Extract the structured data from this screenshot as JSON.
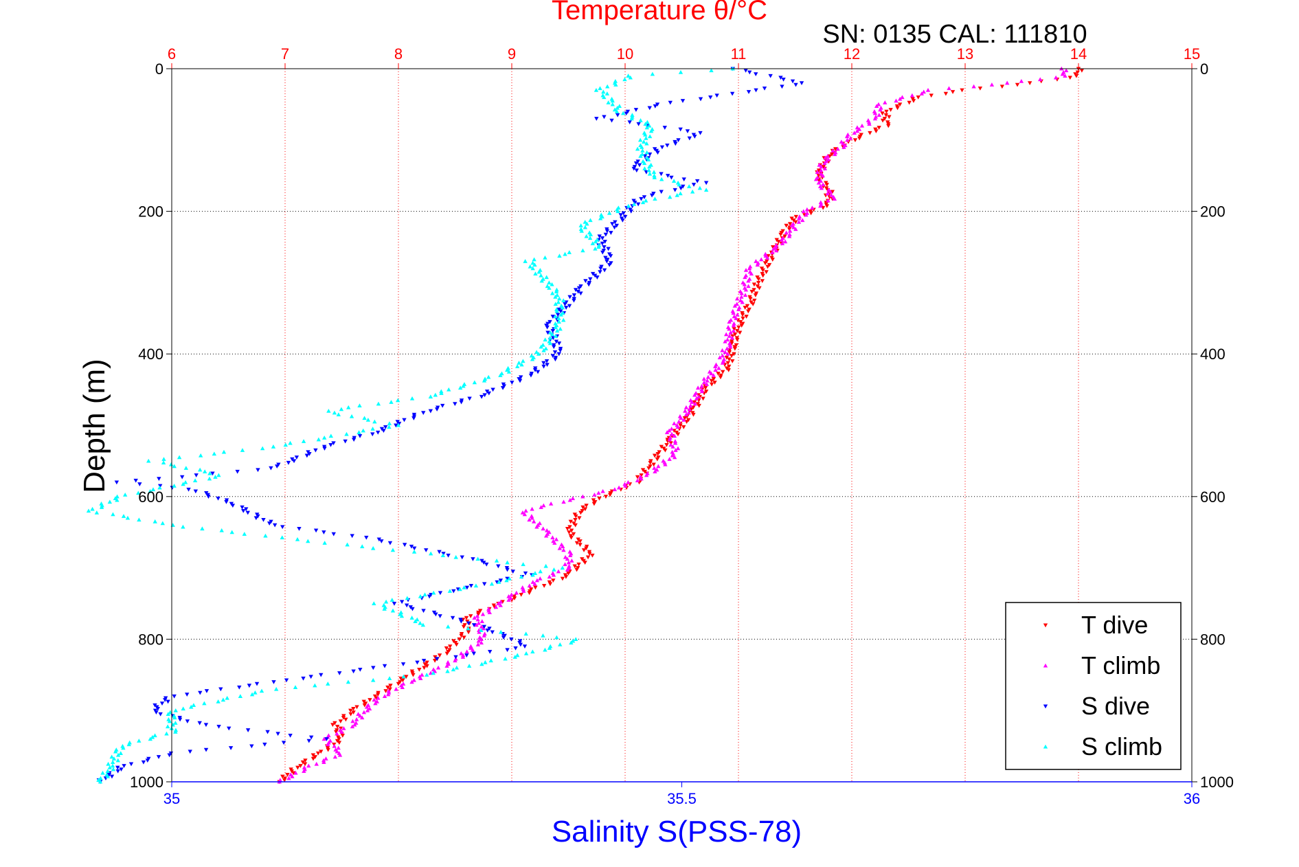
{
  "chart_data": {
    "type": "scatter",
    "title": "Temperature θ/°C",
    "subtitle": "SN: 0135  CAL: 111810",
    "top_axis": {
      "label": "Temperature θ/°C",
      "min": 6,
      "max": 15,
      "ticks": [
        "6",
        "7",
        "8",
        "9",
        "10",
        "11",
        "12",
        "13",
        "14",
        "15"
      ],
      "color": "#ff0000"
    },
    "bottom_axis": {
      "label": "Salinity S(PSS-78)",
      "min": 35,
      "max": 36,
      "ticks": [
        "35",
        "35.5",
        "36"
      ],
      "tick_values": [
        35,
        35.5,
        36
      ],
      "color": "#0000ff"
    },
    "y_axis": {
      "label": "Depth (m)",
      "min": 0,
      "max": 1000,
      "reversed": true,
      "ticks": [
        "0",
        "200",
        "400",
        "600",
        "800",
        "1000"
      ],
      "tick_values": [
        0,
        200,
        400,
        600,
        800,
        1000
      ]
    },
    "grid": true,
    "legend": {
      "position": "bottom-right",
      "entries": [
        "T dive",
        "T climb",
        "S dive",
        "S climb"
      ]
    },
    "series": [
      {
        "name": "T dive",
        "axis": "top",
        "color": "#ff0000",
        "marker": "triangle-down",
        "points": [
          [
            14.0,
            0
          ],
          [
            14.0,
            10
          ],
          [
            13.6,
            20
          ],
          [
            13.0,
            30
          ],
          [
            12.6,
            40
          ],
          [
            12.3,
            60
          ],
          [
            12.3,
            80
          ],
          [
            12.0,
            100
          ],
          [
            11.8,
            120
          ],
          [
            11.7,
            150
          ],
          [
            11.8,
            170
          ],
          [
            11.8,
            190
          ],
          [
            11.5,
            210
          ],
          [
            11.4,
            230
          ],
          [
            11.3,
            260
          ],
          [
            11.2,
            290
          ],
          [
            11.1,
            330
          ],
          [
            11.0,
            360
          ],
          [
            10.95,
            390
          ],
          [
            10.9,
            420
          ],
          [
            10.7,
            450
          ],
          [
            10.6,
            480
          ],
          [
            10.4,
            520
          ],
          [
            10.3,
            540
          ],
          [
            10.2,
            560
          ],
          [
            10.1,
            580
          ],
          [
            9.8,
            600
          ],
          [
            9.6,
            620
          ],
          [
            9.5,
            650
          ],
          [
            9.7,
            680
          ],
          [
            9.5,
            710
          ],
          [
            9.2,
            730
          ],
          [
            8.9,
            750
          ],
          [
            8.6,
            770
          ],
          [
            8.6,
            790
          ],
          [
            8.4,
            820
          ],
          [
            8.2,
            840
          ],
          [
            8.0,
            860
          ],
          [
            7.8,
            880
          ],
          [
            7.6,
            900
          ],
          [
            7.45,
            920
          ],
          [
            7.5,
            940
          ],
          [
            7.3,
            960
          ],
          [
            7.1,
            980
          ],
          [
            6.95,
            1000
          ]
        ]
      },
      {
        "name": "T climb",
        "axis": "top",
        "color": "#ff00ff",
        "marker": "triangle-up",
        "points": [
          [
            13.85,
            0
          ],
          [
            13.9,
            10
          ],
          [
            13.4,
            20
          ],
          [
            12.7,
            30
          ],
          [
            12.25,
            50
          ],
          [
            12.2,
            70
          ],
          [
            12.0,
            90
          ],
          [
            11.9,
            110
          ],
          [
            11.75,
            130
          ],
          [
            11.7,
            160
          ],
          [
            11.85,
            180
          ],
          [
            11.6,
            200
          ],
          [
            11.5,
            220
          ],
          [
            11.35,
            250
          ],
          [
            11.1,
            280
          ],
          [
            11.05,
            310
          ],
          [
            10.95,
            350
          ],
          [
            10.9,
            390
          ],
          [
            10.85,
            410
          ],
          [
            10.7,
            440
          ],
          [
            10.55,
            480
          ],
          [
            10.4,
            510
          ],
          [
            10.45,
            540
          ],
          [
            10.2,
            570
          ],
          [
            9.9,
            590
          ],
          [
            9.1,
            620
          ],
          [
            9.3,
            650
          ],
          [
            9.5,
            680
          ],
          [
            9.5,
            700
          ],
          [
            9.2,
            720
          ],
          [
            9.0,
            740
          ],
          [
            8.7,
            770
          ],
          [
            8.75,
            800
          ],
          [
            8.5,
            830
          ],
          [
            8.1,
            860
          ],
          [
            7.85,
            880
          ],
          [
            7.7,
            900
          ],
          [
            7.6,
            920
          ],
          [
            7.35,
            940
          ],
          [
            7.5,
            960
          ],
          [
            7.2,
            980
          ],
          [
            6.95,
            1000
          ]
        ]
      },
      {
        "name": "S dive",
        "axis": "bottom",
        "color": "#0000ff",
        "marker": "triangle-down",
        "points": [
          [
            35.55,
            0
          ],
          [
            35.62,
            20
          ],
          [
            35.48,
            50
          ],
          [
            35.42,
            70
          ],
          [
            35.52,
            90
          ],
          [
            35.48,
            110
          ],
          [
            35.45,
            140
          ],
          [
            35.52,
            160
          ],
          [
            35.46,
            180
          ],
          [
            35.44,
            210
          ],
          [
            35.42,
            240
          ],
          [
            35.43,
            270
          ],
          [
            35.4,
            310
          ],
          [
            35.37,
            360
          ],
          [
            35.38,
            400
          ],
          [
            35.35,
            430
          ],
          [
            35.3,
            460
          ],
          [
            35.25,
            480
          ],
          [
            35.2,
            510
          ],
          [
            35.15,
            530
          ],
          [
            35.1,
            560
          ],
          [
            34.95,
            580
          ],
          [
            35.02,
            590
          ],
          [
            35.06,
            610
          ],
          [
            35.1,
            640
          ],
          [
            35.2,
            660
          ],
          [
            35.3,
            690
          ],
          [
            35.35,
            710
          ],
          [
            35.28,
            730
          ],
          [
            35.22,
            750
          ],
          [
            35.3,
            780
          ],
          [
            35.35,
            810
          ],
          [
            35.2,
            840
          ],
          [
            35.1,
            860
          ],
          [
            35.0,
            880
          ],
          [
            34.98,
            900
          ],
          [
            35.03,
            920
          ],
          [
            35.15,
            940
          ],
          [
            35.0,
            960
          ],
          [
            34.95,
            980
          ],
          [
            34.93,
            1000
          ]
        ]
      },
      {
        "name": "S climb",
        "axis": "bottom",
        "color": "#00ffff",
        "marker": "triangle-up",
        "points": [
          [
            35.55,
            0
          ],
          [
            35.45,
            10
          ],
          [
            35.42,
            30
          ],
          [
            35.44,
            60
          ],
          [
            35.47,
            80
          ],
          [
            35.46,
            110
          ],
          [
            35.47,
            150
          ],
          [
            35.52,
            170
          ],
          [
            35.45,
            190
          ],
          [
            35.4,
            220
          ],
          [
            35.42,
            250
          ],
          [
            35.35,
            270
          ],
          [
            35.38,
            320
          ],
          [
            35.38,
            360
          ],
          [
            35.36,
            400
          ],
          [
            35.32,
            430
          ],
          [
            35.25,
            460
          ],
          [
            35.15,
            480
          ],
          [
            35.22,
            500
          ],
          [
            35.1,
            530
          ],
          [
            34.98,
            550
          ],
          [
            35.05,
            570
          ],
          [
            34.95,
            600
          ],
          [
            34.92,
            620
          ],
          [
            35.0,
            640
          ],
          [
            35.12,
            660
          ],
          [
            35.25,
            680
          ],
          [
            35.38,
            700
          ],
          [
            35.32,
            720
          ],
          [
            35.2,
            750
          ],
          [
            35.25,
            780
          ],
          [
            35.4,
            800
          ],
          [
            35.35,
            820
          ],
          [
            35.25,
            850
          ],
          [
            35.1,
            870
          ],
          [
            35.0,
            900
          ],
          [
            35.0,
            930
          ],
          [
            34.95,
            950
          ],
          [
            34.94,
            980
          ],
          [
            34.93,
            1000
          ]
        ]
      }
    ]
  }
}
